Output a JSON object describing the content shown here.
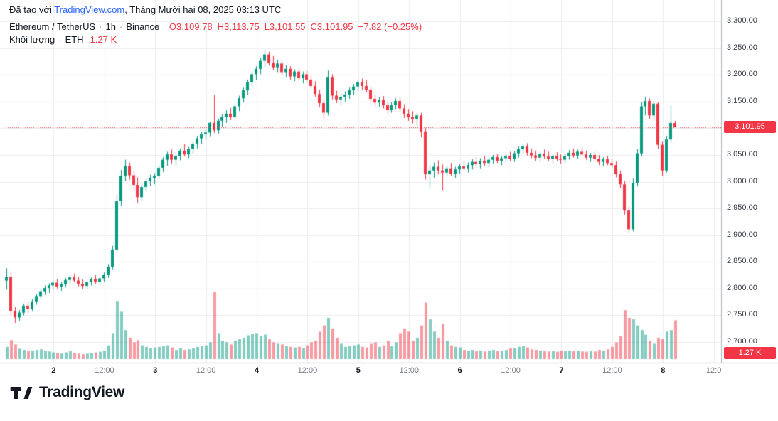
{
  "header": {
    "created_prefix": "Đã tạo với ",
    "created_link": "TradingView.com",
    "created_suffix": ", Tháng Mười hai 08, 2025 03:13 UTC"
  },
  "legend": {
    "symbol": "Ethereum / TetherUS",
    "sep": "·",
    "interval": "1h",
    "exchange": "Binance",
    "ohlc": {
      "o_label": "O",
      "o": "3,109.78",
      "h_label": "H",
      "h": "3,113.75",
      "l_label": "L",
      "l": "3,101.55",
      "c_label": "C",
      "c": "3,101.95",
      "change": "−7.82 (−0.25%)"
    },
    "volume_label": "Khối lượng",
    "volume_symbol": "ETH",
    "volume_value": "1.27 K"
  },
  "price_axis": {
    "labels": [
      {
        "text": "3,300.00",
        "value": 3300
      },
      {
        "text": "3,250.00",
        "value": 3250
      },
      {
        "text": "3,200.00",
        "value": 3200
      },
      {
        "text": "3,150.00",
        "value": 3150
      },
      {
        "text": "3,050.00",
        "value": 3050
      },
      {
        "text": "3,000.00",
        "value": 3000
      },
      {
        "text": "2,950.00",
        "value": 2950
      },
      {
        "text": "2,900.00",
        "value": 2900
      },
      {
        "text": "2,850.00",
        "value": 2850
      },
      {
        "text": "2,800.00",
        "value": 2800
      },
      {
        "text": "2,750.00",
        "value": 2750
      },
      {
        "text": "2,700.00",
        "value": 2700
      }
    ],
    "last_price_badge": {
      "text": "3,101.95",
      "color": "#f23645"
    },
    "volume_badge": {
      "text": "1.27 K",
      "color": "#f23645"
    }
  },
  "time_axis": {
    "ticks": [
      {
        "label": "2",
        "index": 11,
        "major": true
      },
      {
        "label": "12:00",
        "index": 23,
        "major": false
      },
      {
        "label": "3",
        "index": 35,
        "major": true
      },
      {
        "label": "12:00",
        "index": 47,
        "major": false
      },
      {
        "label": "4",
        "index": 59,
        "major": true
      },
      {
        "label": "12:00",
        "index": 71,
        "major": false
      },
      {
        "label": "5",
        "index": 83,
        "major": true
      },
      {
        "label": "12:00",
        "index": 95,
        "major": false
      },
      {
        "label": "6",
        "index": 107,
        "major": true
      },
      {
        "label": "12:00",
        "index": 119,
        "major": false
      },
      {
        "label": "7",
        "index": 131,
        "major": true
      },
      {
        "label": "12:00",
        "index": 143,
        "major": false
      },
      {
        "label": "8",
        "index": 155,
        "major": true
      },
      {
        "label": "12:0",
        "index": 167,
        "major": false
      }
    ]
  },
  "watermark": {
    "brand": "TradingView"
  },
  "chart_data": {
    "type": "candlestick",
    "title": "Ethereum / TetherUS · 1h · Binance",
    "ohlc_current": {
      "open": 3109.78,
      "high": 3113.75,
      "low": 3101.55,
      "close": 3101.95,
      "change": -7.82,
      "change_pct": -0.25
    },
    "volume_current_k": 1.27,
    "last_price": 3101.95,
    "ylim": [
      2700,
      3300
    ],
    "grid_step": 50,
    "grid": true,
    "colors": {
      "up": "#089981",
      "down": "#f23645",
      "volume_up": "rgba(8,153,129,0.5)",
      "volume_down": "rgba(242,54,69,0.5)",
      "grid": "#ebedf0",
      "axis_line": "#b2b5be",
      "dotted_line": "#f23645",
      "link": "#2962ff",
      "text": "#131722"
    },
    "candles_format": "[open, high, low, close, volume_thousands]",
    "candles": [
      [
        2815,
        2838,
        2798,
        2822,
        0.4
      ],
      [
        2822,
        2830,
        2750,
        2758,
        0.62
      ],
      [
        2758,
        2766,
        2736,
        2746,
        0.48
      ],
      [
        2746,
        2760,
        2740,
        2755,
        0.34
      ],
      [
        2755,
        2772,
        2750,
        2768,
        0.3
      ],
      [
        2768,
        2776,
        2754,
        2762,
        0.26
      ],
      [
        2762,
        2780,
        2758,
        2776,
        0.28
      ],
      [
        2776,
        2790,
        2770,
        2786,
        0.3
      ],
      [
        2786,
        2800,
        2780,
        2795,
        0.32
      ],
      [
        2795,
        2806,
        2788,
        2801,
        0.28
      ],
      [
        2801,
        2810,
        2792,
        2806,
        0.25
      ],
      [
        2806,
        2815,
        2798,
        2811,
        0.22
      ],
      [
        2811,
        2818,
        2800,
        2804,
        0.2
      ],
      [
        2804,
        2812,
        2796,
        2808,
        0.18
      ],
      [
        2808,
        2820,
        2802,
        2816,
        0.22
      ],
      [
        2816,
        2826,
        2808,
        2821,
        0.26
      ],
      [
        2821,
        2828,
        2812,
        2815,
        0.2
      ],
      [
        2815,
        2822,
        2804,
        2809,
        0.18
      ],
      [
        2809,
        2817,
        2799,
        2805,
        0.16
      ],
      [
        2805,
        2815,
        2798,
        2812,
        0.18
      ],
      [
        2812,
        2821,
        2806,
        2818,
        0.2
      ],
      [
        2818,
        2826,
        2809,
        2813,
        0.22
      ],
      [
        2813,
        2822,
        2807,
        2819,
        0.24
      ],
      [
        2819,
        2830,
        2813,
        2826,
        0.28
      ],
      [
        2826,
        2846,
        2820,
        2841,
        0.45
      ],
      [
        2841,
        2880,
        2836,
        2873,
        0.85
      ],
      [
        2873,
        2976,
        2869,
        2964,
        1.9
      ],
      [
        2964,
        3022,
        2954,
        3011,
        1.55
      ],
      [
        3011,
        3041,
        3001,
        3029,
        0.95
      ],
      [
        3029,
        3036,
        3004,
        3012,
        0.7
      ],
      [
        3012,
        3020,
        2984,
        2994,
        0.55
      ],
      [
        2994,
        3008,
        2960,
        2971,
        0.62
      ],
      [
        2971,
        2996,
        2964,
        2990,
        0.45
      ],
      [
        2990,
        3006,
        2982,
        3001,
        0.4
      ],
      [
        3001,
        3013,
        2992,
        3007,
        0.35
      ],
      [
        3007,
        3016,
        2995,
        3011,
        0.38
      ],
      [
        3011,
        3031,
        3005,
        3026,
        0.4
      ],
      [
        3026,
        3046,
        3018,
        3041,
        0.42
      ],
      [
        3041,
        3056,
        3030,
        3051,
        0.45
      ],
      [
        3051,
        3060,
        3034,
        3041,
        0.38
      ],
      [
        3041,
        3052,
        3030,
        3048,
        0.3
      ],
      [
        3048,
        3062,
        3040,
        3058,
        0.35
      ],
      [
        3058,
        3070,
        3047,
        3051,
        0.3
      ],
      [
        3051,
        3065,
        3044,
        3061,
        0.32
      ],
      [
        3061,
        3076,
        3052,
        3071,
        0.35
      ],
      [
        3071,
        3086,
        3062,
        3081,
        0.4
      ],
      [
        3081,
        3093,
        3070,
        3089,
        0.42
      ],
      [
        3089,
        3099,
        3078,
        3092,
        0.45
      ],
      [
        3092,
        3112,
        3085,
        3110,
        0.55
      ],
      [
        3110,
        3162,
        3091,
        3096,
        2.2
      ],
      [
        3096,
        3118,
        3090,
        3114,
        0.85
      ],
      [
        3114,
        3126,
        3102,
        3121,
        0.6
      ],
      [
        3121,
        3134,
        3110,
        3127,
        0.55
      ],
      [
        3127,
        3138,
        3115,
        3121,
        0.48
      ],
      [
        3121,
        3146,
        3117,
        3141,
        0.6
      ],
      [
        3141,
        3161,
        3132,
        3156,
        0.65
      ],
      [
        3156,
        3176,
        3148,
        3171,
        0.7
      ],
      [
        3171,
        3191,
        3162,
        3186,
        0.78
      ],
      [
        3186,
        3206,
        3178,
        3201,
        0.82
      ],
      [
        3201,
        3216,
        3190,
        3211,
        0.85
      ],
      [
        3211,
        3232,
        3201,
        3226,
        0.75
      ],
      [
        3226,
        3245,
        3215,
        3238,
        0.8
      ],
      [
        3238,
        3243,
        3217,
        3222,
        0.65
      ],
      [
        3222,
        3235,
        3209,
        3214,
        0.55
      ],
      [
        3214,
        3228,
        3205,
        3221,
        0.5
      ],
      [
        3221,
        3226,
        3199,
        3205,
        0.48
      ],
      [
        3205,
        3218,
        3196,
        3211,
        0.42
      ],
      [
        3211,
        3216,
        3191,
        3197,
        0.4
      ],
      [
        3197,
        3210,
        3188,
        3206,
        0.38
      ],
      [
        3206,
        3212,
        3189,
        3194,
        0.4
      ],
      [
        3194,
        3206,
        3184,
        3201,
        0.35
      ],
      [
        3201,
        3208,
        3187,
        3191,
        0.45
      ],
      [
        3191,
        3198,
        3174,
        3179,
        0.55
      ],
      [
        3179,
        3188,
        3159,
        3164,
        0.6
      ],
      [
        3164,
        3172,
        3139,
        3147,
        0.9
      ],
      [
        3147,
        3155,
        3117,
        3129,
        1.1
      ],
      [
        3129,
        3208,
        3124,
        3196,
        1.35
      ],
      [
        3196,
        3201,
        3154,
        3161,
        1.0
      ],
      [
        3161,
        3170,
        3147,
        3154,
        0.7
      ],
      [
        3154,
        3165,
        3144,
        3159,
        0.5
      ],
      [
        3159,
        3169,
        3150,
        3163,
        0.4
      ],
      [
        3163,
        3176,
        3155,
        3171,
        0.42
      ],
      [
        3171,
        3183,
        3162,
        3178,
        0.45
      ],
      [
        3178,
        3191,
        3169,
        3186,
        0.48
      ],
      [
        3186,
        3193,
        3171,
        3179,
        0.4
      ],
      [
        3179,
        3190,
        3167,
        3172,
        0.38
      ],
      [
        3172,
        3178,
        3149,
        3155,
        0.5
      ],
      [
        3155,
        3163,
        3141,
        3148,
        0.55
      ],
      [
        3148,
        3159,
        3140,
        3153,
        0.4
      ],
      [
        3153,
        3160,
        3137,
        3143,
        0.45
      ],
      [
        3143,
        3150,
        3127,
        3134,
        0.6
      ],
      [
        3134,
        3149,
        3129,
        3143,
        0.42
      ],
      [
        3143,
        3156,
        3136,
        3151,
        0.55
      ],
      [
        3151,
        3158,
        3131,
        3137,
        0.85
      ],
      [
        3137,
        3145,
        3119,
        3127,
        1.0
      ],
      [
        3127,
        3136,
        3114,
        3121,
        0.9
      ],
      [
        3121,
        3132,
        3109,
        3117,
        0.6
      ],
      [
        3117,
        3128,
        3104,
        3124,
        0.7
      ],
      [
        3124,
        3129,
        3083,
        3094,
        1.1
      ],
      [
        3094,
        3100,
        3004,
        3014,
        1.85
      ],
      [
        3014,
        3031,
        2987,
        3021,
        1.3
      ],
      [
        3021,
        3036,
        3007,
        3028,
        0.9
      ],
      [
        3028,
        3040,
        3014,
        3021,
        0.7
      ],
      [
        3021,
        3032,
        2984,
        3017,
        1.15
      ],
      [
        3017,
        3030,
        3009,
        3025,
        0.6
      ],
      [
        3025,
        3035,
        3011,
        3015,
        0.45
      ],
      [
        3015,
        3028,
        3007,
        3023,
        0.4
      ],
      [
        3023,
        3034,
        3015,
        3029,
        0.38
      ],
      [
        3029,
        3038,
        3019,
        3025,
        0.3
      ],
      [
        3025,
        3036,
        3017,
        3031,
        0.28
      ],
      [
        3031,
        3042,
        3023,
        3037,
        0.3
      ],
      [
        3037,
        3046,
        3027,
        3033,
        0.26
      ],
      [
        3033,
        3044,
        3025,
        3039,
        0.28
      ],
      [
        3039,
        3048,
        3029,
        3035,
        0.25
      ],
      [
        3035,
        3045,
        3027,
        3041,
        0.28
      ],
      [
        3041,
        3050,
        3033,
        3046,
        0.3
      ],
      [
        3046,
        3052,
        3035,
        3039,
        0.26
      ],
      [
        3039,
        3048,
        3031,
        3044,
        0.28
      ],
      [
        3044,
        3052,
        3036,
        3048,
        0.3
      ],
      [
        3048,
        3056,
        3039,
        3043,
        0.35
      ],
      [
        3043,
        3058,
        3037,
        3053,
        0.35
      ],
      [
        3053,
        3066,
        3045,
        3061,
        0.4
      ],
      [
        3061,
        3071,
        3052,
        3066,
        0.42
      ],
      [
        3066,
        3072,
        3049,
        3054,
        0.38
      ],
      [
        3054,
        3062,
        3044,
        3049,
        0.32
      ],
      [
        3049,
        3058,
        3039,
        3045,
        0.3
      ],
      [
        3045,
        3056,
        3037,
        3052,
        0.28
      ],
      [
        3052,
        3060,
        3043,
        3047,
        0.26
      ],
      [
        3047,
        3056,
        3039,
        3043,
        0.25
      ],
      [
        3043,
        3052,
        3035,
        3048,
        0.26
      ],
      [
        3048,
        3055,
        3039,
        3043,
        0.24
      ],
      [
        3043,
        3051,
        3034,
        3041,
        0.28
      ],
      [
        3041,
        3052,
        3035,
        3048,
        0.26
      ],
      [
        3048,
        3059,
        3041,
        3054,
        0.28
      ],
      [
        3054,
        3062,
        3045,
        3049,
        0.26
      ],
      [
        3049,
        3060,
        3043,
        3056,
        0.28
      ],
      [
        3056,
        3064,
        3047,
        3051,
        0.25
      ],
      [
        3051,
        3058,
        3041,
        3045,
        0.24
      ],
      [
        3045,
        3054,
        3037,
        3050,
        0.26
      ],
      [
        3050,
        3056,
        3039,
        3043,
        0.25
      ],
      [
        3043,
        3050,
        3031,
        3037,
        0.3
      ],
      [
        3037,
        3046,
        3029,
        3042,
        0.28
      ],
      [
        3042,
        3048,
        3031,
        3035,
        0.32
      ],
      [
        3035,
        3043,
        3026,
        3031,
        0.4
      ],
      [
        3031,
        3038,
        3008,
        3014,
        0.55
      ],
      [
        3014,
        3021,
        2988,
        2995,
        0.75
      ],
      [
        2995,
        3001,
        2938,
        2946,
        1.6
      ],
      [
        2946,
        2954,
        2905,
        2911,
        1.35
      ],
      [
        2911,
        3006,
        2907,
        2998,
        1.3
      ],
      [
        2998,
        3061,
        2991,
        3053,
        1.1
      ],
      [
        3053,
        3149,
        3047,
        3141,
        0.95
      ],
      [
        3141,
        3159,
        3124,
        3151,
        0.8
      ],
      [
        3151,
        3156,
        3117,
        3124,
        0.6
      ],
      [
        3124,
        3151,
        3114,
        3146,
        0.5
      ],
      [
        3146,
        3149,
        3061,
        3069,
        0.7
      ],
      [
        3069,
        3076,
        3011,
        3021,
        0.65
      ],
      [
        3021,
        3086,
        3017,
        3079,
        0.9
      ],
      [
        3079,
        3143,
        3073,
        3110,
        0.95
      ],
      [
        3109.78,
        3113.75,
        3101.55,
        3101.95,
        1.27
      ]
    ]
  }
}
